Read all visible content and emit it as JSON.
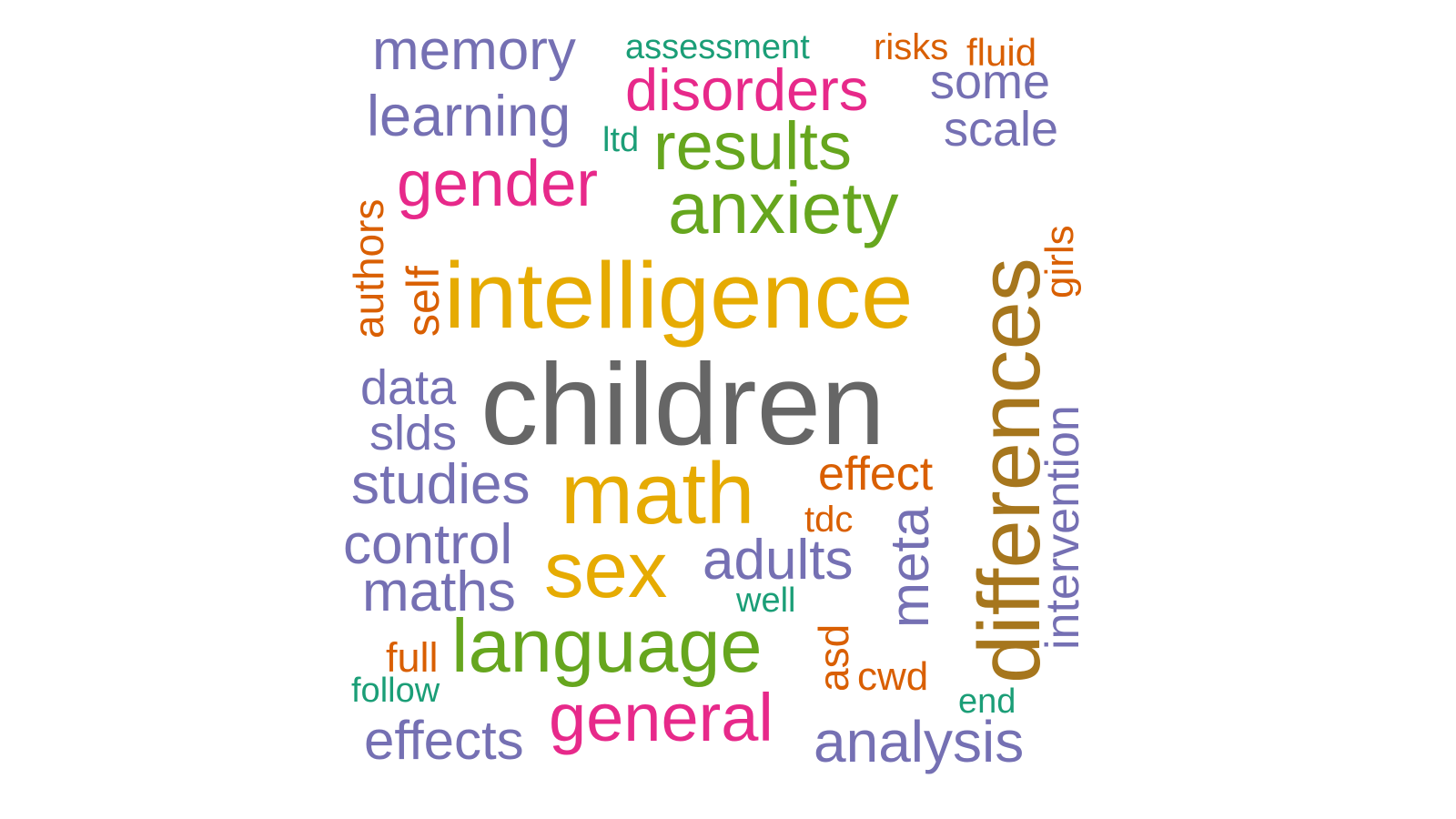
{
  "colors": {
    "gray": "#666666",
    "gold": "#E6AB02",
    "ochre": "#A6761D",
    "green": "#66A61E",
    "magenta": "#E7298A",
    "purple": "#7570B3",
    "orange": "#D95F02",
    "teal": "#1B9E77"
  },
  "words": [
    {
      "text": "children",
      "color": "gray"
    },
    {
      "text": "intelligence",
      "color": "gold"
    },
    {
      "text": "differences",
      "color": "ochre"
    },
    {
      "text": "math",
      "color": "gold"
    },
    {
      "text": "sex",
      "color": "gold"
    },
    {
      "text": "anxiety",
      "color": "green"
    },
    {
      "text": "language",
      "color": "green"
    },
    {
      "text": "results",
      "color": "green"
    },
    {
      "text": "general",
      "color": "magenta"
    },
    {
      "text": "gender",
      "color": "magenta"
    },
    {
      "text": "disorders",
      "color": "magenta"
    },
    {
      "text": "memory",
      "color": "purple"
    },
    {
      "text": "learning",
      "color": "purple"
    },
    {
      "text": "some",
      "color": "purple"
    },
    {
      "text": "scale",
      "color": "purple"
    },
    {
      "text": "data",
      "color": "purple"
    },
    {
      "text": "slds",
      "color": "purple"
    },
    {
      "text": "studies",
      "color": "purple"
    },
    {
      "text": "control",
      "color": "purple"
    },
    {
      "text": "maths",
      "color": "purple"
    },
    {
      "text": "adults",
      "color": "purple"
    },
    {
      "text": "meta",
      "color": "purple"
    },
    {
      "text": "intervention",
      "color": "purple"
    },
    {
      "text": "effects",
      "color": "purple"
    },
    {
      "text": "analysis",
      "color": "purple"
    },
    {
      "text": "assessment",
      "color": "teal"
    },
    {
      "text": "ltd",
      "color": "teal"
    },
    {
      "text": "well",
      "color": "teal"
    },
    {
      "text": "follow",
      "color": "teal"
    },
    {
      "text": "end",
      "color": "teal"
    },
    {
      "text": "risks",
      "color": "orange"
    },
    {
      "text": "fluid",
      "color": "orange"
    },
    {
      "text": "authors",
      "color": "orange"
    },
    {
      "text": "self",
      "color": "orange"
    },
    {
      "text": "girls",
      "color": "orange"
    },
    {
      "text": "effect",
      "color": "orange"
    },
    {
      "text": "tdc",
      "color": "orange"
    },
    {
      "text": "full",
      "color": "orange"
    },
    {
      "text": "asd",
      "color": "orange"
    },
    {
      "text": "cwd",
      "color": "orange"
    }
  ]
}
